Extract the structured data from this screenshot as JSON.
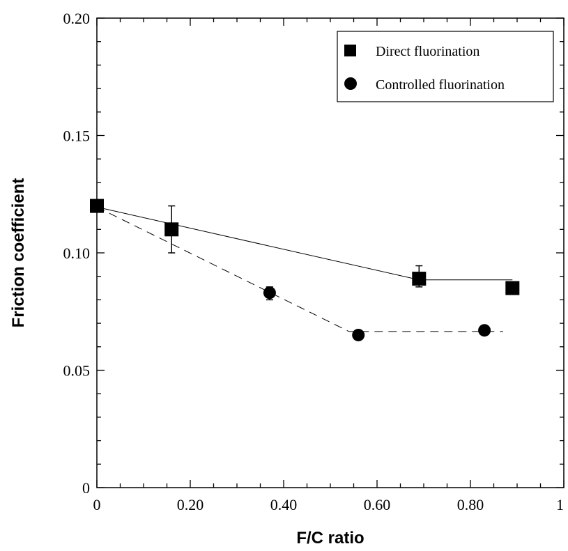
{
  "chart_data": {
    "type": "scatter",
    "xlabel": "F/C ratio",
    "ylabel": "Friction coefficient",
    "xlim": [
      0,
      1
    ],
    "ylim": [
      0,
      0.2
    ],
    "x_ticks": [
      {
        "value": 0,
        "label": "0"
      },
      {
        "value": 0.2,
        "label": "0.20"
      },
      {
        "value": 0.4,
        "label": "0.40"
      },
      {
        "value": 0.6,
        "label": "0.60"
      },
      {
        "value": 0.8,
        "label": "0.80"
      },
      {
        "value": 1,
        "label": "1"
      }
    ],
    "y_ticks": [
      {
        "value": 0,
        "label": "0"
      },
      {
        "value": 0.05,
        "label": "0.05"
      },
      {
        "value": 0.1,
        "label": "0.10"
      },
      {
        "value": 0.15,
        "label": "0.15"
      },
      {
        "value": 0.2,
        "label": "0.20"
      }
    ],
    "legend_position": "top-right",
    "series": [
      {
        "name": "Direct fluorination",
        "marker": "square",
        "line_style": "solid",
        "color": "#000000",
        "points": [
          {
            "x": 0.0,
            "y": 0.12
          },
          {
            "x": 0.16,
            "y": 0.11,
            "err_low": 0.1,
            "err_high": 0.12
          },
          {
            "x": 0.69,
            "y": 0.089,
            "err_low": 0.0855,
            "err_high": 0.0945
          },
          {
            "x": 0.89,
            "y": 0.085
          }
        ],
        "fit_line": [
          [
            0.0,
            0.1195
          ],
          [
            0.69,
            0.0885
          ],
          [
            0.89,
            0.0885
          ]
        ]
      },
      {
        "name": "Controlled fluorination",
        "marker": "circle",
        "line_style": "dashed",
        "color": "#000000",
        "points": [
          {
            "x": 0.37,
            "y": 0.083,
            "err_low": 0.08,
            "err_high": 0.0855
          },
          {
            "x": 0.56,
            "y": 0.065
          },
          {
            "x": 0.83,
            "y": 0.067
          }
        ],
        "fit_line": [
          [
            0.0,
            0.1195
          ],
          [
            0.54,
            0.0665
          ],
          [
            0.87,
            0.0665
          ]
        ]
      }
    ]
  }
}
